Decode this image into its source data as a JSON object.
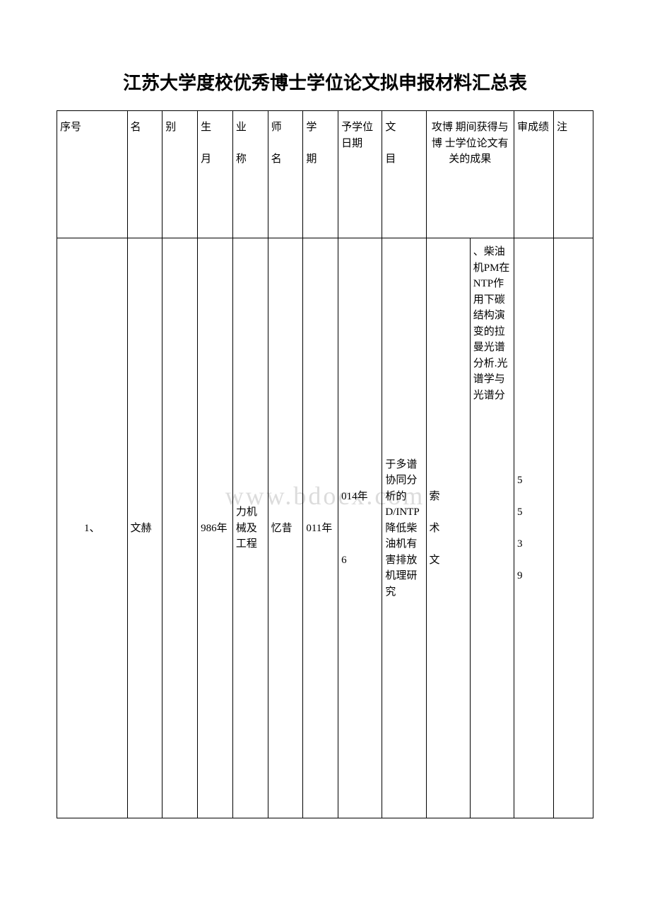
{
  "title": "江苏大学度校优秀博士学位论文拟申报材料汇总表",
  "watermark": "www.bdocx.com",
  "headers": {
    "seq": "序号",
    "name": "名",
    "gender": "别",
    "birth": "生\n\n月",
    "major": "业\n\n称",
    "tutor": "师\n\n名",
    "enroll": "学\n\n期",
    "degree_date": "予学位日期",
    "thesis": "文\n\n目",
    "results_merged": "攻博 期间获得与博 士学位论文有关的成果",
    "score": "审成绩",
    "note": "注"
  },
  "row": {
    "seq": "1、",
    "name": "文赫",
    "gender": "",
    "birth": "986年",
    "major": "力机械及工程",
    "tutor": "忆昔",
    "enroll": "011年",
    "degree_date": "014年\n\n\n\n6",
    "thesis": "于多谱协同分析的D/INTP降低柴油机有害排放机理研究",
    "result1": "索\n\n术\n\n文",
    "result2": "、柴油机PM在NTP作用下碳结构演变的拉曼光谱分析.光谱学与光谱分",
    "score": "5\n\n5\n\n3\n\n9",
    "note": ""
  }
}
